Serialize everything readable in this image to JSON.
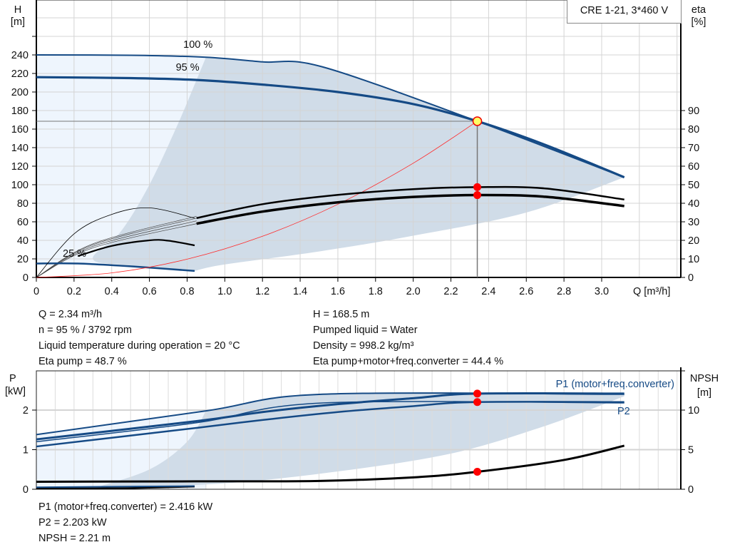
{
  "legend_box": "CRE 1-21, 3*460 V",
  "chart_data": [
    {
      "type": "line",
      "title": "",
      "ylabel": "H",
      "yunit": "[m]",
      "y2label": "eta",
      "y2unit": "[%]",
      "xlabel": "Q [m³/h]",
      "xlim": [
        0,
        3.42
      ],
      "ylim": [
        0,
        280
      ],
      "y2lim": [
        0,
        107.7
      ],
      "xticks": [
        "0",
        "0.2",
        "0.4",
        "0.6",
        "0.8",
        "1.0",
        "1.2",
        "1.4",
        "1.6",
        "1.8",
        "2.0",
        "2.2",
        "2.4",
        "2.6",
        "2.8",
        "3.0"
      ],
      "yticks": [
        "0",
        "20",
        "40",
        "60",
        "80",
        "100",
        "120",
        "140",
        "160",
        "180",
        "200",
        "220",
        "240"
      ],
      "y2ticks": [
        "0",
        "10",
        "20",
        "30",
        "40",
        "50",
        "60",
        "70",
        "80",
        "90"
      ],
      "grid": true,
      "colors": {
        "pump_curve": "#154a85",
        "eta_curve": "#000000",
        "system_curve": "#ff2a2a",
        "range_dark": "#d0dce8",
        "range_light": "#eef5fd",
        "duty_point": "#ffff66"
      },
      "speed_labels": [
        "100 %",
        "95 %",
        "25 %"
      ],
      "series": [
        {
          "name": "100 %",
          "axis": "H",
          "points": [
            [
              0,
              240
            ],
            [
              0.5,
              239.6
            ],
            [
              0.9,
              237.5
            ],
            [
              1.2,
              232.5
            ],
            [
              1.52,
              227
            ],
            [
              2.34,
              168.5
            ],
            [
              3.12,
              108
            ]
          ]
        },
        {
          "name": "95 %",
          "axis": "H",
          "points": [
            [
              0,
              216
            ],
            [
              0.5,
              215
            ],
            [
              0.85,
              213
            ],
            [
              1.2,
              208
            ],
            [
              1.6,
              200
            ],
            [
              2.0,
              187
            ],
            [
              2.34,
              168.5
            ],
            [
              2.7,
              143
            ],
            [
              3.12,
              108
            ]
          ]
        },
        {
          "name": "25 %",
          "axis": "H",
          "points": [
            [
              0,
              15
            ],
            [
              0.22,
              15
            ],
            [
              0.5,
              12
            ],
            [
              0.84,
              7
            ]
          ]
        },
        {
          "axis": "H",
          "role": "system",
          "points": [
            [
              0,
              0
            ],
            [
              0.4,
              4.9
            ],
            [
              0.8,
              19.7
            ],
            [
              1.2,
              44.4
            ],
            [
              1.6,
              78.9
            ],
            [
              2.0,
              123.2
            ],
            [
              2.34,
              168.5
            ]
          ]
        },
        {
          "axis": "eta",
          "role": "eta-pump",
          "points": [
            [
              0.85,
              32
            ],
            [
              1.2,
              39.5
            ],
            [
              1.6,
              44.5
            ],
            [
              2.0,
              47.6
            ],
            [
              2.34,
              48.7
            ],
            [
              2.7,
              48
            ],
            [
              3.12,
              42
            ]
          ]
        },
        {
          "axis": "eta",
          "role": "eta-total",
          "points": [
            [
              0.85,
              29
            ],
            [
              1.2,
              35.5
            ],
            [
              1.6,
              40.5
            ],
            [
              2.0,
              43.4
            ],
            [
              2.34,
              44.4
            ],
            [
              2.7,
              43.5
            ],
            [
              3.12,
              38.5
            ]
          ]
        },
        {
          "axis": "eta",
          "role": "eta-low-speed-thin",
          "points": [
            [
              0,
              0
            ],
            [
              0.2,
              23.5
            ],
            [
              0.4,
              34
            ],
            [
              0.6,
              37.5
            ],
            [
              0.84,
              32
            ]
          ]
        },
        {
          "axis": "eta",
          "role": "eta-low-speed",
          "points": [
            [
              0.22,
              11.5
            ],
            [
              0.4,
              17
            ],
            [
              0.6,
              20
            ],
            [
              0.7,
              19.8
            ],
            [
              0.84,
              17.3
            ]
          ]
        }
      ],
      "duty_point": {
        "Q": 2.34,
        "H": 168.5,
        "eta_pump": 48.7,
        "eta_total": 44.4
      }
    },
    {
      "type": "line",
      "ylabel": "P",
      "yunit": "[kW]",
      "y2label": "NPSH",
      "y2unit": "[m]",
      "xlim": [
        0,
        3.42
      ],
      "ylim": [
        0,
        3.0
      ],
      "y2lim": [
        0,
        15
      ],
      "yticks": [
        "0",
        "1",
        "2"
      ],
      "y2ticks": [
        "0",
        "5",
        "10"
      ],
      "grid": true,
      "series": [
        {
          "name": "P1 (motor+freq.converter)",
          "axis": "P",
          "points": [
            [
              0,
              1.26
            ],
            [
              0.85,
              1.72
            ],
            [
              1.2,
              1.95
            ],
            [
              1.6,
              2.15
            ],
            [
              2.0,
              2.3
            ],
            [
              2.34,
              2.416
            ],
            [
              3.12,
              2.416
            ]
          ]
        },
        {
          "name": "P2",
          "axis": "P",
          "points": [
            [
              0,
              1.08
            ],
            [
              0.85,
              1.55
            ],
            [
              1.2,
              1.75
            ],
            [
              1.6,
              1.95
            ],
            [
              2.0,
              2.1
            ],
            [
              2.34,
              2.203
            ],
            [
              3.12,
              2.203
            ]
          ]
        },
        {
          "axis": "P",
          "role": "P1-100",
          "points": [
            [
              0,
              1.38
            ],
            [
              0.9,
              1.98
            ],
            [
              1.52,
              2.4
            ],
            [
              3.12,
              2.4
            ]
          ]
        },
        {
          "axis": "P",
          "role": "P2-100",
          "points": [
            [
              0,
              1.2
            ],
            [
              0.85,
              1.68
            ],
            [
              1.52,
              2.18
            ],
            [
              3.12,
              2.18
            ]
          ]
        },
        {
          "axis": "NPSH",
          "role": "npsh",
          "points": [
            [
              0,
              0.95
            ],
            [
              0.85,
              1.0
            ],
            [
              1.5,
              1.05
            ],
            [
              2.0,
              1.5
            ],
            [
              2.34,
              2.21
            ],
            [
              2.8,
              3.7
            ],
            [
              3.12,
              5.5
            ]
          ]
        },
        {
          "axis": "NPSH",
          "role": "npsh-low",
          "points": [
            [
              0,
              0.1
            ],
            [
              0.22,
              0.1
            ],
            [
              0.5,
              0.15
            ],
            [
              0.84,
              0.35
            ]
          ]
        }
      ],
      "duty_point": {
        "Q": 2.34,
        "P1": 2.416,
        "P2": 2.203,
        "NPSH": 2.21
      }
    }
  ],
  "results_top": {
    "left": [
      "Q = 2.34 m³/h",
      "n = 95 % / 3792 rpm",
      "Liquid temperature during operation = 20 °C",
      "Eta pump = 48.7 %"
    ],
    "right": [
      "H = 168.5 m",
      "Pumped liquid = Water",
      "Density = 998.2 kg/m³",
      "Eta pump+motor+freq.converter = 44.4 %"
    ]
  },
  "results_bottom": [
    "P1 (motor+freq.converter) = 2.416 kW",
    "P2 = 2.203 kW",
    "NPSH = 2.21 m"
  ]
}
